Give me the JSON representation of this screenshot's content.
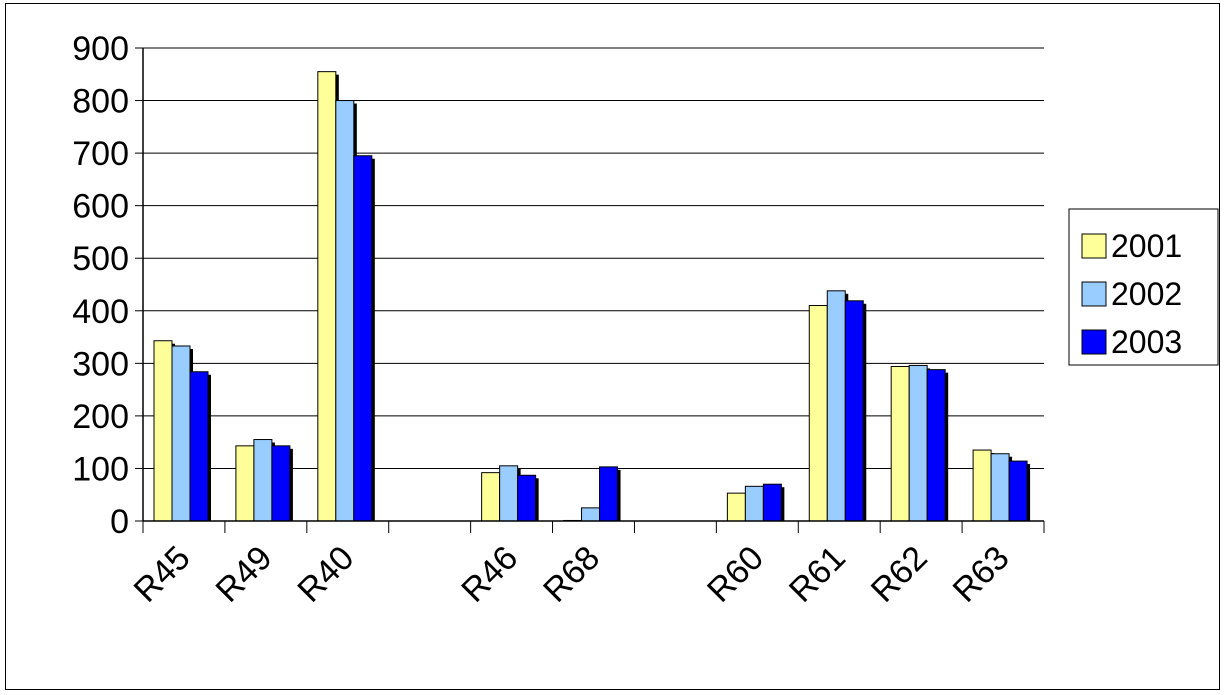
{
  "chart_data": {
    "type": "bar",
    "title": "",
    "xlabel": "",
    "ylabel": "",
    "ylim": [
      0,
      900
    ],
    "yticks": [
      0,
      100,
      200,
      300,
      400,
      500,
      600,
      700,
      800,
      900
    ],
    "grid": true,
    "legend_position": "right",
    "categories": [
      "R45",
      "R49",
      "R40",
      "",
      "R46",
      "R68",
      "",
      "R60",
      "R61",
      "R62",
      "R63"
    ],
    "series": [
      {
        "name": "2001",
        "color": "#ffff99",
        "values": [
          343,
          143,
          855,
          null,
          92,
          1,
          null,
          53,
          410,
          294,
          135
        ]
      },
      {
        "name": "2002",
        "color": "#99ccff",
        "values": [
          333,
          155,
          800,
          null,
          105,
          25,
          null,
          66,
          438,
          296,
          128
        ]
      },
      {
        "name": "2003",
        "color": "#0000ff",
        "values": [
          284,
          143,
          695,
          null,
          87,
          103,
          null,
          70,
          419,
          288,
          114
        ]
      }
    ]
  }
}
